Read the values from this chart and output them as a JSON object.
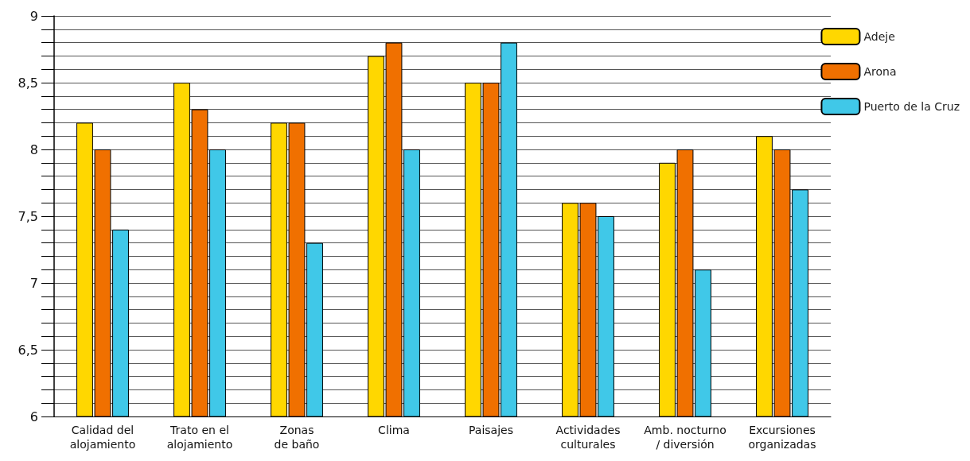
{
  "chart_data": {
    "type": "bar",
    "categories": [
      "Calidad del\nalojamiento",
      "Trato en el\nalojamiento",
      "Zonas\nde baño",
      "Clima",
      "Paisajes",
      "Actividades\nculturales",
      "Amb. nocturno\n/ diversión",
      "Excursiones\norganizadas"
    ],
    "series": [
      {
        "name": "Adeje",
        "color": "#ffd700",
        "values": [
          8.2,
          8.5,
          8.2,
          8.7,
          8.5,
          7.6,
          7.9,
          8.1
        ]
      },
      {
        "name": "Arona",
        "color": "#f07000",
        "values": [
          8.0,
          8.3,
          8.2,
          8.8,
          8.5,
          7.6,
          8.0,
          8.0
        ]
      },
      {
        "name": "Puerto de la Cruz",
        "color": "#40c8e8",
        "values": [
          7.4,
          8.0,
          7.3,
          8.0,
          8.8,
          7.5,
          7.1,
          7.7
        ]
      }
    ],
    "ylim": [
      6,
      9
    ],
    "yticks": [
      {
        "value": 6,
        "label": "6"
      },
      {
        "value": 6.1,
        "label": null
      },
      {
        "value": 6.2,
        "label": null
      },
      {
        "value": 6.3,
        "label": null
      },
      {
        "value": 6.4,
        "label": null
      },
      {
        "value": 6.5,
        "label": "6,5"
      },
      {
        "value": 6.6,
        "label": null
      },
      {
        "value": 6.7,
        "label": null
      },
      {
        "value": 6.8,
        "label": null
      },
      {
        "value": 6.9,
        "label": null
      },
      {
        "value": 7,
        "label": "7"
      },
      {
        "value": 7.1,
        "label": null
      },
      {
        "value": 7.2,
        "label": null
      },
      {
        "value": 7.3,
        "label": null
      },
      {
        "value": 7.4,
        "label": null
      },
      {
        "value": 7.5,
        "label": "7,5"
      },
      {
        "value": 7.6,
        "label": null
      },
      {
        "value": 7.7,
        "label": null
      },
      {
        "value": 7.8,
        "label": null
      },
      {
        "value": 7.9,
        "label": null
      },
      {
        "value": 8,
        "label": "8"
      },
      {
        "value": 8.1,
        "label": null
      },
      {
        "value": 8.2,
        "label": null
      },
      {
        "value": 8.3,
        "label": null
      },
      {
        "value": 8.4,
        "label": null
      },
      {
        "value": 8.5,
        "label": "8,5"
      },
      {
        "value": 8.6,
        "label": null
      },
      {
        "value": 8.7,
        "label": null
      },
      {
        "value": 8.8,
        "label": null
      },
      {
        "value": 8.9,
        "label": null
      },
      {
        "value": 9,
        "label": "9"
      }
    ],
    "grid": "y",
    "legend": "right"
  }
}
